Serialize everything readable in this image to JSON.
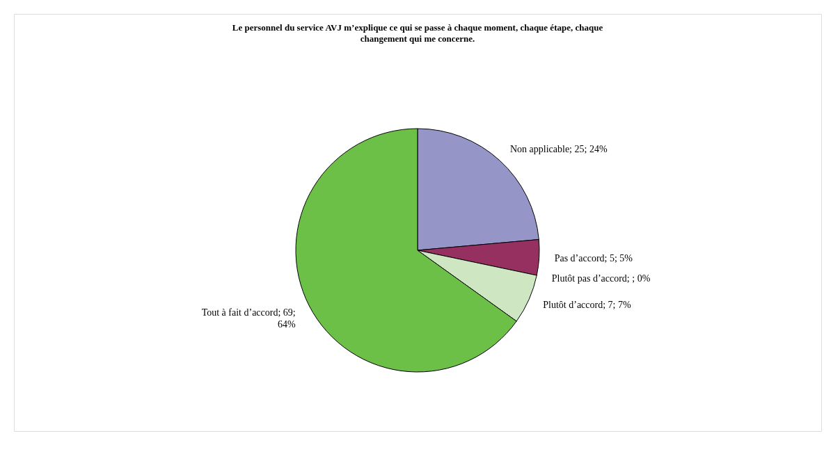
{
  "chart_data": {
    "type": "pie",
    "title": "Le personnel du service AVJ m’explique ce qui se passe à chaque moment, chaque étape, chaque changement qui me concerne.",
    "categories": [
      "Non applicable",
      "Pas d’accord",
      "Plutôt pas d’accord",
      "Plutôt d’accord",
      "Tout à fait d’accord"
    ],
    "values": [
      25,
      5,
      0,
      7,
      69
    ],
    "colors": [
      "#9595c7",
      "#953060",
      "#ffffff",
      "#cfe6c3",
      "#6cbf47"
    ],
    "value_labels": [
      "; 25; 24%",
      "; 5; 5%",
      "; ; 0%",
      "; 7; 7%",
      "; 69; 64%"
    ],
    "legend": false
  }
}
